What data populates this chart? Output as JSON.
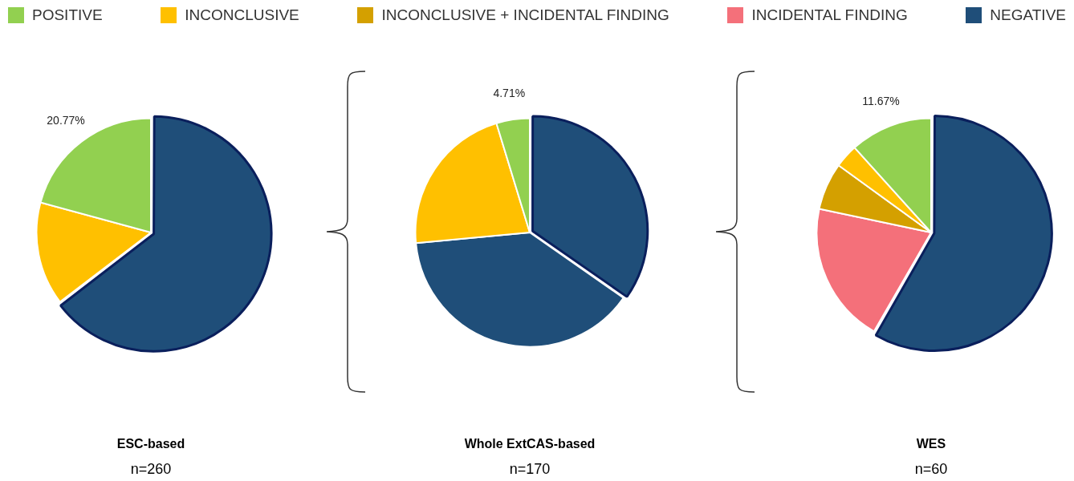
{
  "chart_data": [
    {
      "type": "pie",
      "title": "ESC-based",
      "subtitle": "n=260",
      "categories": [
        null,
        null,
        null
      ],
      "values": [
        64.62,
        14.61,
        20.77
      ],
      "colors": [
        "#1f4e79",
        "#ffc000",
        "#92d050"
      ],
      "value_labels": [
        null,
        null,
        "20.77%"
      ]
    },
    {
      "type": "pie",
      "title": "Whole ExtCAS-based",
      "subtitle": "n=170",
      "categories": [
        null,
        null,
        null,
        null
      ],
      "values": [
        34.71,
        38.82,
        21.76,
        4.71
      ],
      "colors": [
        "#1f4e79",
        "#1f4e79",
        "#ffc000",
        "#92d050"
      ],
      "value_labels": [
        null,
        null,
        null,
        "4.71%"
      ]
    },
    {
      "type": "pie",
      "title": "WES",
      "subtitle": "n=60",
      "legend": "top",
      "categories": [
        "NEGATIVE",
        "INCIDENTAL FINDING",
        "INCONCLUSIVE + INCIDENTAL FINDING",
        "INCONCLUSIVE",
        "POSITIVE"
      ],
      "values": [
        58.33,
        20,
        6.67,
        3.33,
        11.67
      ],
      "colors": [
        "#1f4e79",
        "#f4707a",
        "#d4a000",
        "#ffc000",
        "#92d050"
      ],
      "value_labels": [
        null,
        null,
        null,
        null,
        "11.67%"
      ]
    }
  ]
}
